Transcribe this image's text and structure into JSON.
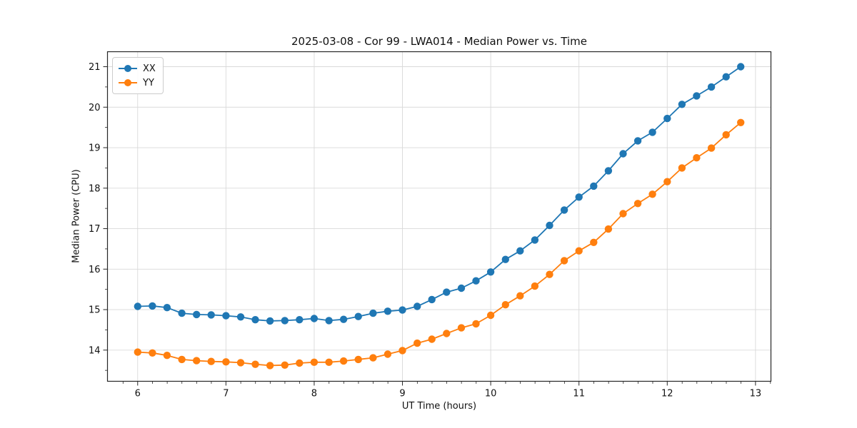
{
  "chart_data": {
    "type": "line",
    "title": "2025-03-08 - Cor 99 - LWA014 - Median Power vs. Time",
    "xlabel": "UT Time (hours)",
    "ylabel": "Median Power (CPU)",
    "xlim": [
      5.658,
      13.175
    ],
    "ylim": [
      13.23,
      21.37
    ],
    "x_ticks": [
      6,
      7,
      8,
      9,
      10,
      11,
      12,
      13
    ],
    "y_ticks": [
      14,
      15,
      16,
      17,
      18,
      19,
      20,
      21
    ],
    "x_minor_step": 0.1667,
    "y_minor_step": 0.5,
    "grid": true,
    "grid_color": "#d9d9d9",
    "spine_color": "#262626",
    "legend_position": "upper-left",
    "x": [
      6.0,
      6.167,
      6.333,
      6.5,
      6.667,
      6.833,
      7.0,
      7.167,
      7.333,
      7.5,
      7.667,
      7.833,
      8.0,
      8.167,
      8.333,
      8.5,
      8.667,
      8.833,
      9.0,
      9.167,
      9.333,
      9.5,
      9.667,
      9.833,
      10.0,
      10.167,
      10.333,
      10.5,
      10.667,
      10.833,
      11.0,
      11.167,
      11.333,
      11.5,
      11.667,
      11.833,
      12.0,
      12.167,
      12.333,
      12.5,
      12.667,
      12.833
    ],
    "series": [
      {
        "name": "XX",
        "color": "#1f77b4",
        "values": [
          15.08,
          15.09,
          15.05,
          14.91,
          14.88,
          14.87,
          14.85,
          14.82,
          14.75,
          14.72,
          14.73,
          14.75,
          14.78,
          14.73,
          14.76,
          14.83,
          14.91,
          14.96,
          14.99,
          15.08,
          15.25,
          15.43,
          15.53,
          15.71,
          15.93,
          16.24,
          16.45,
          16.72,
          17.08,
          17.46,
          17.78,
          18.05,
          18.43,
          18.85,
          19.17,
          19.38,
          19.72,
          20.07,
          20.28,
          20.5,
          20.75,
          21.0
        ]
      },
      {
        "name": "YY",
        "color": "#ff7f0e",
        "values": [
          13.95,
          13.93,
          13.87,
          13.77,
          13.74,
          13.72,
          13.71,
          13.69,
          13.65,
          13.62,
          13.63,
          13.68,
          13.7,
          13.7,
          13.73,
          13.77,
          13.81,
          13.9,
          13.99,
          14.17,
          14.27,
          14.41,
          14.55,
          14.65,
          14.86,
          15.12,
          15.34,
          15.58,
          15.87,
          16.21,
          16.45,
          16.66,
          16.99,
          17.37,
          17.62,
          17.85,
          18.16,
          18.5,
          18.75,
          18.99,
          19.32,
          19.62
        ]
      }
    ]
  },
  "layout_text": {
    "title": "2025-03-08 - Cor 99 - LWA014 - Median Power vs. Time",
    "xlabel": "UT Time (hours)",
    "ylabel": "Median Power (CPU)"
  }
}
